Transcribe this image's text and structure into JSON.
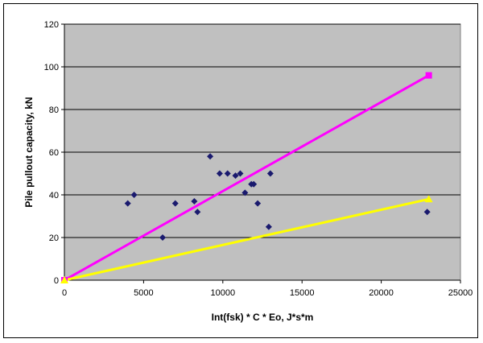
{
  "chart_data": {
    "type": "scatter",
    "xlabel": "Int(fsk) * C * Eo, J*s*m",
    "ylabel": "Pile pullout capacity, kN",
    "xlim": [
      0,
      25000
    ],
    "ylim": [
      0,
      120
    ],
    "x_ticks": [
      0,
      5000,
      10000,
      15000,
      20000,
      25000
    ],
    "y_ticks": [
      0,
      20,
      40,
      60,
      80,
      100,
      120
    ],
    "grid": "horizontal",
    "plot_background": "#c0c0c0",
    "legend": "none",
    "series": [
      {
        "marker": "diamond",
        "color": "#1a1a6e",
        "points": [
          {
            "x": 4000,
            "y": 36
          },
          {
            "x": 4400,
            "y": 40
          },
          {
            "x": 6200,
            "y": 20
          },
          {
            "x": 7000,
            "y": 36
          },
          {
            "x": 8200,
            "y": 37
          },
          {
            "x": 8400,
            "y": 32
          },
          {
            "x": 9200,
            "y": 58
          },
          {
            "x": 9800,
            "y": 50
          },
          {
            "x": 10300,
            "y": 50
          },
          {
            "x": 10800,
            "y": 49
          },
          {
            "x": 11100,
            "y": 50
          },
          {
            "x": 11400,
            "y": 41
          },
          {
            "x": 11800,
            "y": 45
          },
          {
            "x": 11950,
            "y": 45
          },
          {
            "x": 12200,
            "y": 36
          },
          {
            "x": 12900,
            "y": 25
          },
          {
            "x": 13000,
            "y": 50
          },
          {
            "x": 22900,
            "y": 32
          }
        ]
      },
      {
        "type": "line",
        "color": "#ff00ff",
        "end_marker": "square",
        "points": [
          {
            "x": 0,
            "y": 0
          },
          {
            "x": 23000,
            "y": 96
          }
        ]
      },
      {
        "type": "line",
        "color": "#ffff00",
        "end_marker": "triangle",
        "points": [
          {
            "x": 0,
            "y": 0
          },
          {
            "x": 23000,
            "y": 38
          }
        ]
      }
    ]
  }
}
